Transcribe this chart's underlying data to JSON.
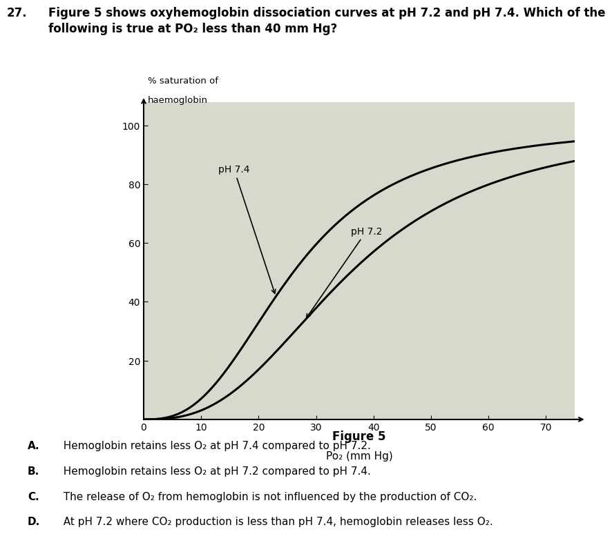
{
  "question_number": "27.",
  "question_text_line1": "Figure 5 shows oxyhemoglobin dissociation curves at pH 7.2 and pH 7.4. Which of the",
  "question_text_line2": "following is true at PO₂ less than 40 mm Hg?",
  "figure_title": "Figure 5",
  "ylabel_line1": "% saturation of",
  "ylabel_line2": "haemoglobin",
  "xlabel": "Po₂ (mm Hg)",
  "xlim": [
    0,
    75
  ],
  "ylim": [
    0,
    108
  ],
  "xticks": [
    0,
    10,
    20,
    30,
    40,
    50,
    60,
    70
  ],
  "yticks": [
    20,
    40,
    60,
    80,
    100
  ],
  "ph74_label": "pH 7.4",
  "ph72_label": "pH 7.2",
  "answer_A": "A.    Hemoglobin retains less O₂ at pH 7.4 compared to pH 7.2.",
  "answer_B": "B.    Hemoglobin retains less O₂ at pH 7.2 compared to pH 7.4.",
  "answer_C": "C.    The release of O₂ from hemoglobin is not influenced by the production of CO₂.",
  "answer_D": "D.    At pH 7.2 where CO₂ production is less than pH 7.4, hemoglobin releases less O₂.",
  "line_color": "#000000",
  "bg_color": "#ffffff",
  "plot_bg_color": "#d8d8cc",
  "ph74_p50": 26,
  "ph72_p50": 36,
  "hill_n": 2.7
}
